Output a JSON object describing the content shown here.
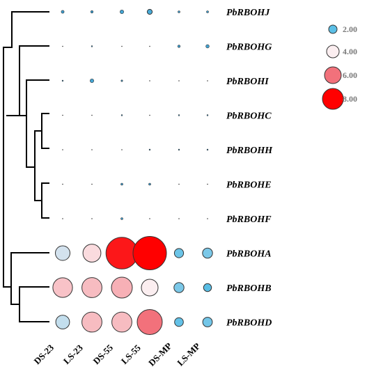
{
  "chart_data": {
    "type": "bubble-heatmap",
    "rows": [
      "PbRBOHJ",
      "PbRBOHG",
      "PbRBOHI",
      "PbRBOHC",
      "PbRBOHH",
      "PbRBOHE",
      "PbRBOHF",
      "PbRBOHA",
      "PbRBOHB",
      "PbRBOHD"
    ],
    "columns": [
      "DS-23",
      "LS-23",
      "DS-55",
      "LS-55",
      "DS-MP",
      "LS-MP"
    ],
    "values": [
      [
        0.7,
        0.6,
        0.9,
        1.2,
        0.5,
        0.5
      ],
      [
        0.05,
        0.3,
        0.05,
        0.05,
        0.6,
        0.8
      ],
      [
        0.3,
        0.9,
        0.4,
        0.05,
        0.05,
        0.05
      ],
      [
        0.05,
        0.05,
        0.3,
        0.05,
        0.3,
        0.3
      ],
      [
        0.05,
        0.05,
        0.05,
        0.3,
        0.3,
        0.3
      ],
      [
        0.05,
        0.05,
        0.5,
        0.5,
        0.05,
        0.05
      ],
      [
        0.05,
        0.05,
        0.5,
        0.05,
        0.05,
        0.05
      ],
      [
        3.5,
        4.3,
        7.6,
        8.0,
        2.2,
        2.4
      ],
      [
        4.7,
        4.8,
        5.0,
        4.0,
        2.4,
        1.9
      ],
      [
        3.3,
        4.8,
        4.8,
        6.0,
        2.1,
        2.3
      ]
    ],
    "legend": [
      {
        "label": "2.00",
        "value": 2.0,
        "color": "#5bbfe6"
      },
      {
        "label": "4.00",
        "value": 4.0,
        "color": "#fbeef0"
      },
      {
        "label": "6.00",
        "value": 6.0,
        "color": "#f2717b"
      },
      {
        "label": "8.00",
        "value": 8.0,
        "color": "#ff0000"
      }
    ],
    "color_stops": [
      {
        "value": 0.0,
        "color": "#2f8ec4"
      },
      {
        "value": 2.0,
        "color": "#5bbfe6"
      },
      {
        "value": 4.0,
        "color": "#fbeef0"
      },
      {
        "value": 6.0,
        "color": "#f2717b"
      },
      {
        "value": 8.0,
        "color": "#ff0000"
      }
    ],
    "legend_position": "top-right",
    "dendrogram": "left"
  }
}
